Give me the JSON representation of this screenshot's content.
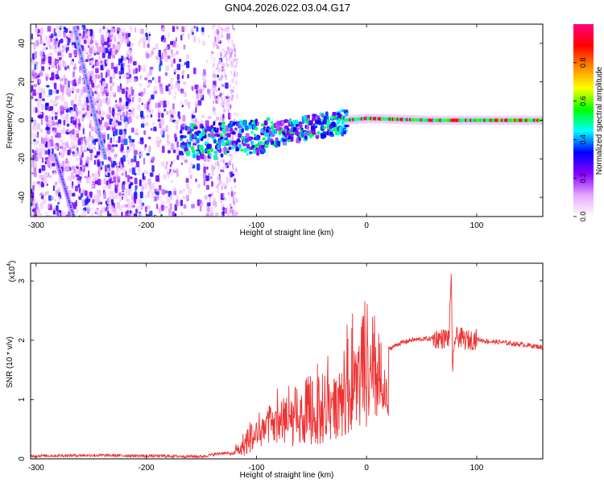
{
  "title": "GN04.2026.022.03.04.G17",
  "chart_data": [
    {
      "type": "heatmap",
      "panel": "top",
      "title": "GN04.2026.022.03.04.G17",
      "xlabel": "Height of straight line (km)",
      "ylabel": "Frequency (Hz)",
      "xlim": [
        -305,
        160
      ],
      "ylim": [
        -50,
        50
      ],
      "xticks": [
        -300,
        -200,
        -100,
        0,
        100
      ],
      "yticks": [
        -40,
        -20,
        0,
        20,
        40
      ],
      "colorbar": {
        "label": "Normalized spectral amplitude",
        "range": [
          0,
          1
        ],
        "ticks": [
          "0.0",
          "0.2",
          "0.4",
          "0.6",
          "0.8"
        ],
        "colormap": [
          "#ffffff",
          "#e6a6ff",
          "#8800ff",
          "#0000ff",
          "#00ffff",
          "#00ff00",
          "#ffff00",
          "#ff8800",
          "#ff0000",
          "#ff0080"
        ]
      },
      "features": [
        {
          "name": "diagonal streak 1",
          "points": [
            [
              -265,
              48
            ],
            [
              -250,
              10
            ],
            [
              -237,
              -20
            ]
          ],
          "amplitude": 0.35
        },
        {
          "name": "diagonal streak 2",
          "points": [
            [
              -283,
              -18
            ],
            [
              -266,
              -50
            ]
          ],
          "amplitude": 0.3
        },
        {
          "name": "main signal band",
          "points": [
            [
              -170,
              -10
            ],
            [
              -100,
              -8
            ],
            [
              -50,
              -2
            ],
            [
              -20,
              0
            ],
            [
              0,
              1
            ],
            [
              60,
              0
            ],
            [
              100,
              0
            ],
            [
              160,
              0
            ]
          ],
          "amplitude_range": [
            0.3,
            0.95
          ]
        }
      ]
    },
    {
      "type": "line",
      "panel": "bottom",
      "xlabel": "Height of straight line (km)",
      "ylabel": "SNR (10 * v/v)",
      "y_scale_label": "(x10",
      "y_scale_exp": "4",
      "y_scale_close": ")",
      "xlim": [
        -305,
        160
      ],
      "ylim": [
        0,
        3.3
      ],
      "xticks": [
        -300,
        -200,
        -100,
        0,
        100
      ],
      "yticks": [
        0,
        1,
        2,
        3
      ],
      "color": "#ee3333",
      "series": [
        {
          "name": "SNR",
          "x": [
            -305,
            -250,
            -200,
            -150,
            -130,
            -120,
            -110,
            -100,
            -90,
            -80,
            -70,
            -60,
            -50,
            -40,
            -30,
            -20,
            -15,
            -10,
            -5,
            0,
            5,
            10,
            20,
            30,
            40,
            50,
            60,
            70,
            75,
            77,
            78,
            80,
            85,
            90,
            100,
            110,
            120,
            130,
            140,
            150,
            160
          ],
          "y": [
            0.05,
            0.06,
            0.05,
            0.04,
            0.1,
            0.08,
            0.15,
            0.45,
            0.6,
            0.7,
            0.55,
            0.6,
            0.65,
            0.55,
            0.9,
            1.1,
            1.3,
            1.5,
            1.35,
            1.2,
            1.4,
            1.8,
            1.85,
            1.95,
            2.0,
            2.02,
            2.03,
            2.03,
            2.05,
            3.25,
            1.3,
            2.05,
            2.05,
            2.0,
            2.02,
            1.98,
            1.97,
            1.95,
            1.93,
            1.91,
            1.88
          ],
          "noise_envelope": {
            "x": [
              -120,
              -100,
              -80,
              -60,
              -40,
              -20,
              0,
              10,
              20
            ],
            "y": [
              0.2,
              0.7,
              1.1,
              1.0,
              1.6,
              1.9,
              2.25,
              1.8,
              0.4
            ]
          }
        }
      ]
    }
  ]
}
